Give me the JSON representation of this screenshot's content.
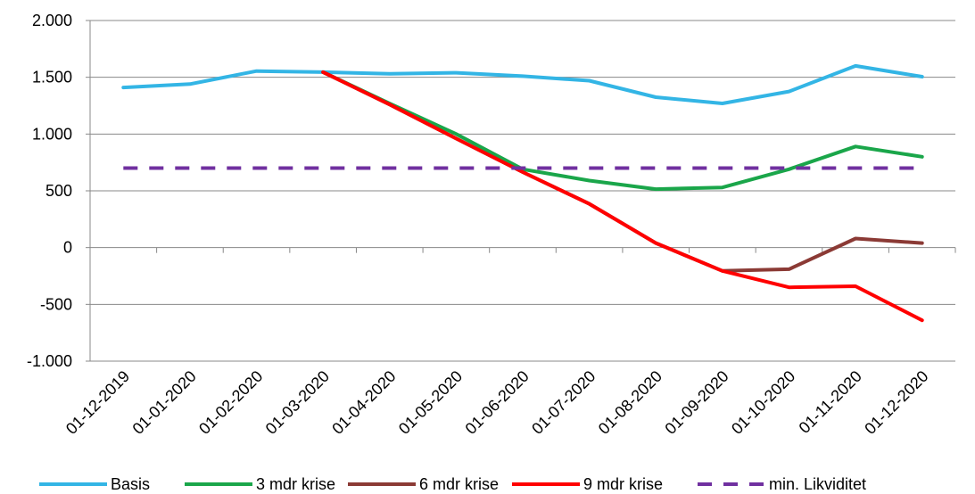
{
  "chart_data": {
    "type": "line",
    "title": "",
    "xlabel": "",
    "ylabel": "",
    "categories": [
      "01-12-2019",
      "01-01-2020",
      "01-02-2020",
      "01-03-2020",
      "01-04-2020",
      "01-05-2020",
      "01-06-2020",
      "01-07-2020",
      "01-08-2020",
      "01-09-2020",
      "01-10-2020",
      "01-11-2020",
      "01-12-2020"
    ],
    "ylim": [
      -1000,
      2000
    ],
    "yticks": [
      2000,
      1500,
      1000,
      500,
      0,
      -500,
      -1000
    ],
    "ytick_labels": [
      "2.000",
      "1.500",
      "1.000",
      "500",
      "0",
      "-500",
      "-1.000"
    ],
    "grid": true,
    "legend_position": "bottom",
    "series": [
      {
        "name": "Basis",
        "color": "#33b5e5",
        "dashed": false,
        "values": [
          1410,
          1440,
          1555,
          1545,
          1530,
          1540,
          1510,
          1470,
          1325,
          1270,
          1375,
          1600,
          1505
        ]
      },
      {
        "name": "3 mdr krise",
        "color": "#1aa64a",
        "dashed": false,
        "values": [
          null,
          null,
          null,
          1545,
          1270,
          1000,
          690,
          590,
          515,
          530,
          690,
          890,
          800
        ]
      },
      {
        "name": "6 mdr krise",
        "color": "#8b3a35",
        "dashed": false,
        "values": [
          null,
          null,
          null,
          1545,
          1260,
          960,
          665,
          385,
          40,
          -205,
          -190,
          80,
          40
        ]
      },
      {
        "name": "9 mdr krise",
        "color": "#ff0000",
        "dashed": false,
        "values": [
          null,
          null,
          null,
          1545,
          1260,
          960,
          665,
          385,
          40,
          -205,
          -350,
          -340,
          -640
        ]
      },
      {
        "name": "min. Likviditet",
        "color": "#7030a0",
        "dashed": true,
        "values": [
          700,
          700,
          700,
          700,
          700,
          700,
          700,
          700,
          700,
          700,
          700,
          700,
          700
        ]
      }
    ]
  }
}
